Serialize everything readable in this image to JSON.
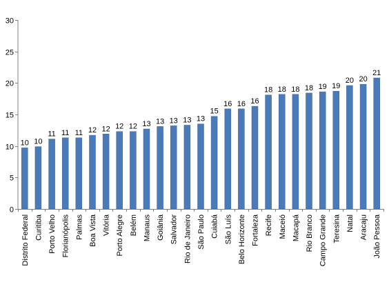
{
  "chart_data": {
    "type": "bar",
    "categories": [
      "Distrito Federal",
      "Curitiba",
      "Porto Velho",
      "Florianópolis",
      "Palmas",
      "Boa Vista",
      "Vitória",
      "Porto Alegre",
      "Belém",
      "Manaus",
      "Goiânia",
      "Salvador",
      "Rio de Janeiro",
      "São Paulo",
      "Cuiabá",
      "São Luís",
      "Belo Horizonte",
      "Fortaleza",
      "Recife",
      "Maceió",
      "Macapá",
      "Rio Branco",
      "Campo Grande",
      "Teresina",
      "Natal",
      "Aracaju",
      "João Pessoa"
    ],
    "values": [
      9.7,
      9.9,
      11.1,
      11.3,
      11.3,
      11.7,
      11.9,
      12.3,
      12.3,
      12.7,
      13.1,
      13.2,
      13.3,
      13.5,
      14.7,
      15.9,
      15.9,
      16.3,
      18.1,
      18.2,
      18.2,
      18.4,
      18.6,
      18.7,
      19.6,
      19.8,
      20.8
    ],
    "data_labels": [
      "10",
      "10",
      "11",
      "11",
      "11",
      "12",
      "12",
      "12",
      "12",
      "13",
      "13",
      "13",
      "13",
      "13",
      "15",
      "16",
      "16",
      "16",
      "18",
      "18",
      "18",
      "18",
      "19",
      "19",
      "20",
      "20",
      "21"
    ],
    "ylim": [
      0,
      30
    ],
    "yticks": [
      0,
      5,
      10,
      15,
      20,
      25,
      30
    ],
    "title": "",
    "xlabel": "",
    "ylabel": "",
    "grid": false,
    "legend": "none",
    "colors": {
      "bar": "#4a7ab8",
      "bar_edge": "#3a64a0",
      "axis": "#808080"
    }
  }
}
